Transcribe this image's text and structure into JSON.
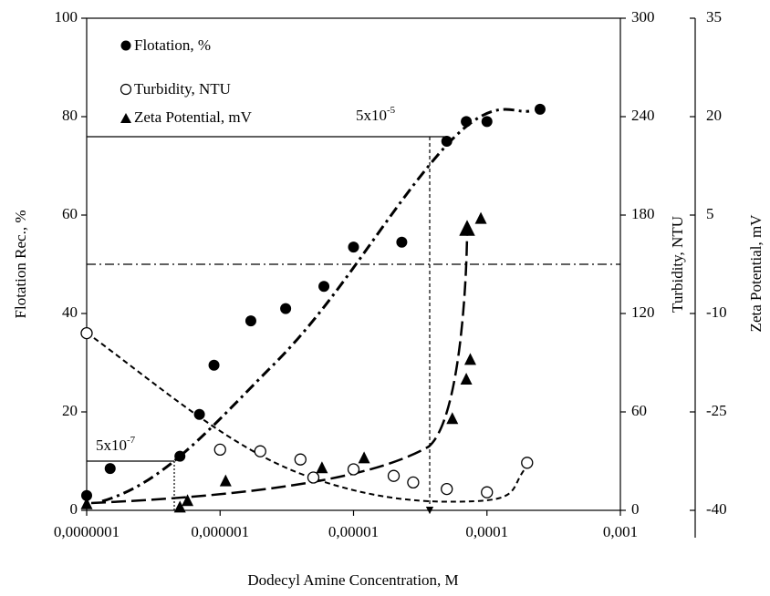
{
  "chart_data": {
    "type": "scatter",
    "x_label": "Dodecyl Amine Concentration, M",
    "y_label": "Flotation Rec., %",
    "y2_label": "Turbidity, NTU",
    "y3_label": "Zeta Potential, mV",
    "xscale": "log",
    "xlim": [
      1e-07,
      0.001
    ],
    "xticks": [
      {
        "value": 1e-07,
        "label": "0,0000001"
      },
      {
        "value": 1e-06,
        "label": "0,000001"
      },
      {
        "value": 1e-05,
        "label": "0,00001"
      },
      {
        "value": 0.0001,
        "label": "0,0001"
      },
      {
        "value": 0.001,
        "label": "0,001"
      }
    ],
    "ylim": [
      0,
      100
    ],
    "yticks": [
      0,
      20,
      40,
      60,
      80,
      100
    ],
    "y2lim": [
      0,
      300
    ],
    "y2ticks": [
      0,
      60,
      120,
      180,
      240,
      300
    ],
    "y3lim": [
      -40,
      35
    ],
    "y3ticks": [
      -40,
      -25,
      -10,
      5,
      20,
      35
    ],
    "annotations": [
      {
        "text": "5x10",
        "exponent": "-5"
      },
      {
        "text": "5x10",
        "exponent": "-7"
      }
    ],
    "series": [
      {
        "name": "Flotation, %",
        "marker": "filled-circle",
        "color": "#000000",
        "x": [
          1e-07,
          1.5e-07,
          5e-07,
          7e-07,
          9e-07,
          1.7e-06,
          3.1e-06,
          6e-06,
          1e-05,
          2.3e-05,
          5e-05,
          7e-05,
          0.0001,
          0.00025
        ],
        "values": [
          3,
          8.5,
          11,
          19.5,
          29.5,
          38.5,
          41,
          45.5,
          53.5,
          54.5,
          75,
          79,
          79,
          81.5
        ]
      },
      {
        "name": "Turbidity, NTU",
        "marker": "open-circle",
        "color": "#000000",
        "axis": "y2",
        "x": [
          1e-07,
          1e-06,
          2e-06,
          4e-06,
          5e-06,
          1e-05,
          2e-05,
          2.8e-05,
          5e-05,
          0.0001,
          0.0002
        ],
        "values": [
          108,
          37,
          36,
          31,
          20,
          25,
          21,
          17,
          13,
          11,
          29
        ]
      },
      {
        "name": "Zeta Potential, mV",
        "marker": "triangle",
        "color": "#000000",
        "axis": "y3",
        "x": [
          1e-07,
          5e-07,
          5.7e-07,
          1.1e-06,
          5.8e-06,
          1.2e-05,
          5.5e-05,
          7e-05,
          7.5e-05,
          9e-05
        ],
        "values": [
          -39,
          -39.5,
          -38.5,
          -35.5,
          -33.5,
          -32,
          -26,
          -20,
          -17,
          4.5
        ]
      }
    ]
  }
}
